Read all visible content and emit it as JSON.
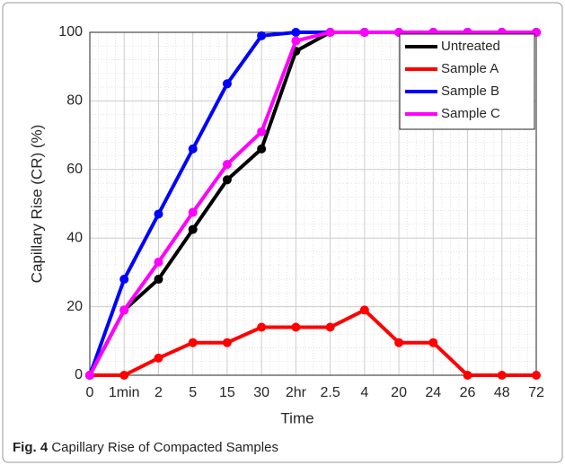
{
  "chart_data": {
    "type": "line",
    "caption_label": "Fig. 4",
    "caption": "Capillary Rise of Compacted Samples",
    "x_label": "Time",
    "y_label": "Capillary Rise (CR) (%)",
    "categories": [
      "0",
      "1min",
      "2",
      "5",
      "15",
      "30",
      "2hr",
      "2.5",
      "4",
      "20",
      "24",
      "26",
      "48",
      "72"
    ],
    "series": [
      {
        "name": "Untreated",
        "color": "#000000",
        "values": [
          0,
          19,
          28,
          42.5,
          57,
          66,
          94.5,
          100,
          100,
          100,
          100,
          100,
          100,
          100
        ]
      },
      {
        "name": "Sample A",
        "color": "#ff0000",
        "values": [
          0,
          0,
          5,
          9.5,
          9.5,
          14,
          14,
          14,
          19,
          9.5,
          9.5,
          0,
          0,
          0
        ]
      },
      {
        "name": "Sample B",
        "color": "#0000ff",
        "values": [
          0,
          28,
          47,
          66,
          85,
          99,
          100,
          100,
          100,
          100,
          100,
          100,
          100,
          100
        ]
      },
      {
        "name": "Sample C",
        "color": "#ff00ff",
        "values": [
          0,
          19,
          33,
          47.5,
          61.5,
          71,
          97.5,
          100,
          100,
          100,
          100,
          100,
          100,
          100
        ]
      }
    ],
    "ylim": [
      0,
      100
    ],
    "yticks": [
      0,
      20,
      40,
      60,
      80,
      100
    ],
    "grid": true,
    "minor_grid": true,
    "legend": "upper right"
  }
}
